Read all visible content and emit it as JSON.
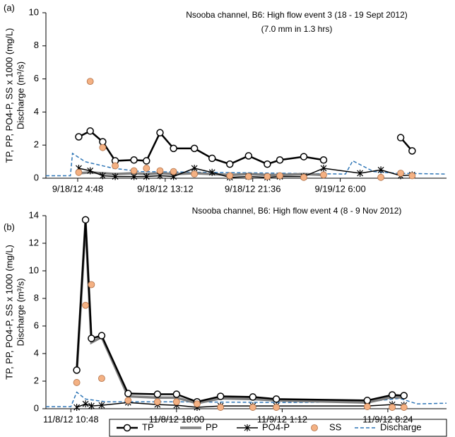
{
  "chart_data": [
    {
      "type": "line",
      "panel_label": "(a)",
      "title": "Nsooba channel, B6: High flow event 3 (18 - 19 Sept 2012)",
      "subtitle": "(7.0 mm in 1.3 hrs)",
      "y_label": [
        "TP, PP, PO4-P, SS x 1000 (mg/L)",
        "Discharge (m³/s)"
      ],
      "xlim": [
        1.75,
        40.2
      ],
      "xticks": [
        {
          "value": 4.8,
          "label": "9/18/12 4:48"
        },
        {
          "value": 13.2,
          "label": "9/18/12 13:12"
        },
        {
          "value": 21.6,
          "label": "9/18/12 21:36"
        },
        {
          "value": 30,
          "label": "9/19/12 6:00"
        }
      ],
      "ylim": [
        0,
        10
      ],
      "yticks": [
        0,
        2,
        4,
        6,
        8,
        10
      ],
      "series": [
        {
          "name": "TP",
          "color": "#000000",
          "line": "solid",
          "marker": "circle",
          "x": [
            4.9,
            6.0,
            7.2,
            8.4,
            10.2,
            11.4,
            12.7,
            14.0,
            16.0,
            17.7,
            19.4,
            21.2,
            23.0,
            24.2,
            26.5,
            28.4,
            31.9,
            35.8,
            36.9
          ],
          "values": [
            2.5,
            2.85,
            2.2,
            1.05,
            1.1,
            1.05,
            2.75,
            1.8,
            1.8,
            1.2,
            0.85,
            1.35,
            0.85,
            1.1,
            1.3,
            1.1,
            null,
            2.45,
            1.65
          ]
        },
        {
          "name": "PP",
          "color": "#808080",
          "line": "solid",
          "marker": "none",
          "x": [
            4.9,
            6.0,
            7.2,
            8.4,
            10.2,
            11.4,
            12.7,
            14.0,
            16.0,
            17.7,
            19.4,
            21.2,
            23.0,
            24.2,
            26.5,
            28.4
          ],
          "values": [
            0.3,
            0.35,
            0.3,
            0.25,
            0.3,
            0.25,
            0.3,
            0.25,
            0.3,
            0.25,
            0.2,
            0.25,
            0.2,
            0.2,
            0.25,
            0.2
          ]
        },
        {
          "name": "PO4-P",
          "color": "#000000",
          "line": "thin",
          "marker": "asterisk",
          "x": [
            4.9,
            6.0,
            7.2,
            8.4,
            10.2,
            11.4,
            12.7,
            14.0,
            16.0,
            17.7,
            19.4,
            21.2,
            23.0,
            24.2,
            26.5,
            28.4,
            31.9,
            33.9,
            35.8,
            36.9
          ],
          "values": [
            0.6,
            0.45,
            0.15,
            0.1,
            0.1,
            0.1,
            0.15,
            0.1,
            0.6,
            0.35,
            0.05,
            0.1,
            0.05,
            0.1,
            0.1,
            0.6,
            0.3,
            0.5,
            0.15,
            0.2
          ]
        },
        {
          "name": "SS",
          "color": "#f4b183",
          "line": "none",
          "marker": "dot",
          "x": [
            4.9,
            6.0,
            7.2,
            8.4,
            10.2,
            11.4,
            12.7,
            14.0,
            16.0,
            19.4,
            21.2,
            23.0,
            24.2,
            26.5,
            28.4,
            33.9,
            35.8,
            36.9
          ],
          "values": [
            0.35,
            5.85,
            1.85,
            0.75,
            0.45,
            0.6,
            0.45,
            0.4,
            0.25,
            0.15,
            0.1,
            0.1,
            0.15,
            0.05,
            0.2,
            0.05,
            0.3,
            0.15
          ]
        },
        {
          "name": "Discharge",
          "color": "#2e75b6",
          "line": "dashed",
          "marker": "none",
          "x": [
            1.75,
            4.1,
            4.3,
            5.5,
            8.2,
            10.9,
            17.7,
            24.4,
            30.5,
            31.2,
            33.2,
            35.3,
            40.2
          ],
          "values": [
            0.15,
            0.15,
            1.5,
            1.0,
            0.6,
            0.4,
            0.35,
            0.3,
            0.25,
            1.05,
            0.4,
            0.3,
            0.25
          ]
        }
      ]
    },
    {
      "type": "line",
      "panel_label": "(b)",
      "title": "Nsooba channel, B6: High flow event 4 (8 - 9 Nov 2012)",
      "y_label": [
        "TP, PP, PO4-P, SS x 1000 (mg/L)",
        "Discharge (m³/s)"
      ],
      "xlim": [
        9.1,
        36.4
      ],
      "xticks": [
        {
          "value": 10.8,
          "label": "11/8/12 10:48"
        },
        {
          "value": 18,
          "label": "11/8/12 18:00"
        },
        {
          "value": 25.2,
          "label": "11/9/12 1:12"
        },
        {
          "value": 32.4,
          "label": "11/9/12 8:24"
        }
      ],
      "ylim": [
        0,
        14
      ],
      "yticks": [
        0,
        2,
        4,
        6,
        8,
        10,
        12,
        14
      ],
      "series": [
        {
          "name": "TP",
          "color": "#000000",
          "line": "solid",
          "marker": "circle",
          "x": [
            11.2,
            11.8,
            12.2,
            12.9,
            14.7,
            16.7,
            18.0,
            19.4,
            21.0,
            23.2,
            24.8,
            31.0,
            32.7,
            33.5
          ],
          "values": [
            2.8,
            13.7,
            5.1,
            5.3,
            1.1,
            1.05,
            1.05,
            0.5,
            0.9,
            0.85,
            0.7,
            0.6,
            1.0,
            0.95
          ]
        },
        {
          "name": "PP",
          "color": "#808080",
          "line": "solid",
          "marker": "none",
          "x": [
            11.2,
            11.8,
            12.2,
            12.9,
            14.7,
            16.7,
            18.0,
            19.4,
            21.0,
            23.2,
            24.8,
            31.0,
            32.7,
            33.5
          ],
          "values": [
            2.6,
            13.5,
            4.8,
            5.2,
            0.9,
            0.8,
            0.8,
            0.4,
            0.75,
            0.7,
            0.6,
            0.45,
            0.85,
            0.8
          ]
        },
        {
          "name": "PO4-P",
          "color": "#000000",
          "line": "thin",
          "marker": "asterisk",
          "x": [
            11.2,
            11.8,
            12.2,
            12.9,
            14.7,
            16.7,
            18.0,
            19.4,
            21.0,
            23.2,
            24.8,
            31.0,
            32.7,
            33.5
          ],
          "values": [
            0.1,
            0.35,
            0.2,
            0.25,
            0.45,
            0.3,
            0.25,
            0.1,
            0.2,
            0.2,
            0.2,
            0.2,
            0.3,
            0.25
          ]
        },
        {
          "name": "SS",
          "color": "#f4b183",
          "line": "none",
          "marker": "dot",
          "x": [
            11.2,
            11.8,
            12.2,
            12.9,
            14.7,
            16.7,
            18.0,
            19.4,
            21.0,
            23.2,
            24.8,
            31.0,
            32.7,
            33.5
          ],
          "values": [
            1.9,
            7.5,
            9.0,
            2.2,
            0.6,
            0.5,
            0.5,
            0.35,
            0.1,
            0.1,
            0.1,
            0.15,
            0.1,
            0.1
          ]
        },
        {
          "name": "Discharge",
          "color": "#2e75b6",
          "line": "dashed",
          "marker": "none",
          "x": [
            9.1,
            10.8,
            11.2,
            11.8,
            13.2,
            18.0,
            25.2,
            31.0,
            33.2,
            34.4,
            36.4
          ],
          "values": [
            0.15,
            0.15,
            1.2,
            0.7,
            0.5,
            0.5,
            0.45,
            0.5,
            0.75,
            0.35,
            0.4
          ]
        }
      ]
    }
  ]
}
